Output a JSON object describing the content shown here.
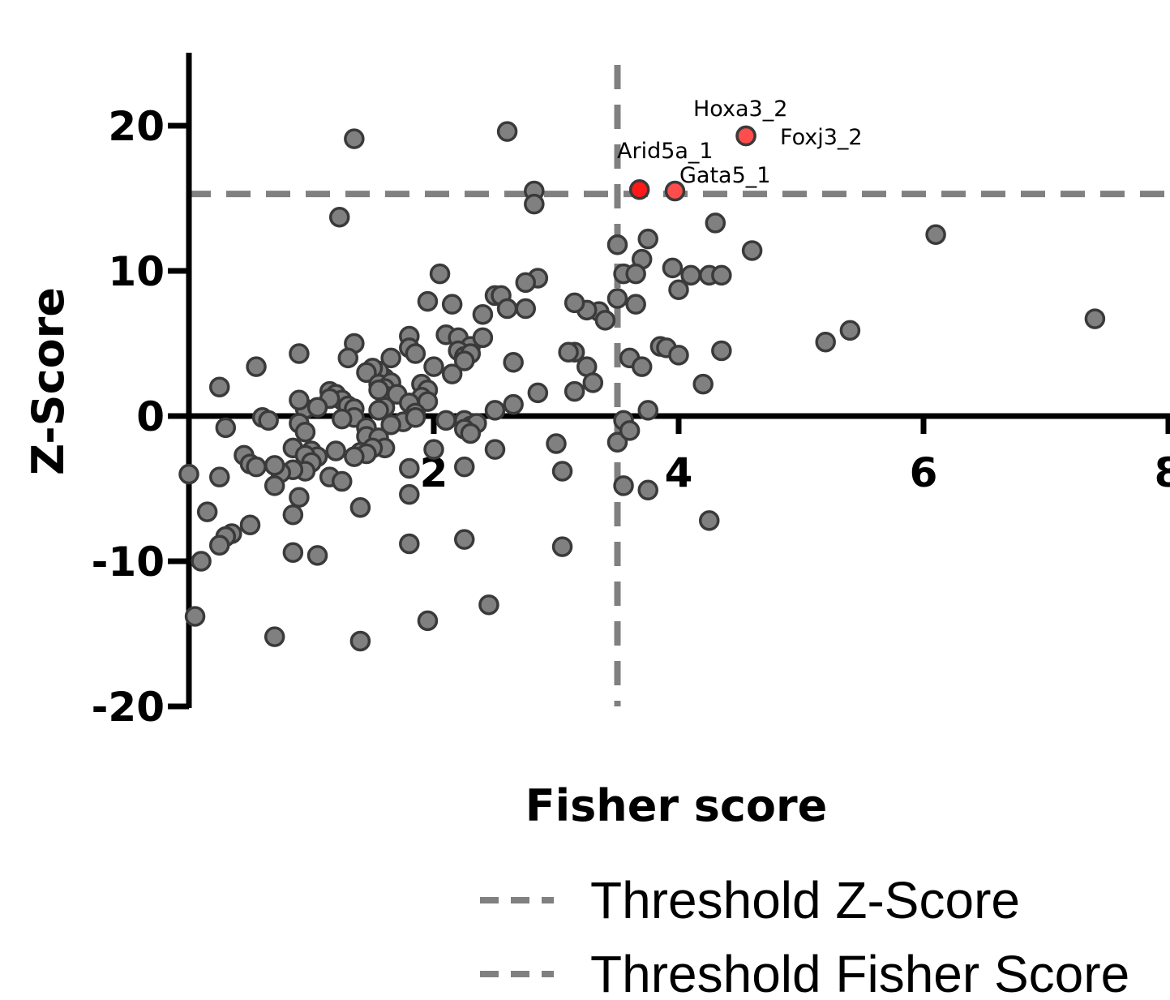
{
  "chart_data": {
    "type": "scatter",
    "xlabel": "Fisher score",
    "ylabel": "Z-Score",
    "xlim": [
      0,
      8
    ],
    "ylim": [
      -20,
      25
    ],
    "x_ticks": [
      {
        "value": 2,
        "label": "2"
      },
      {
        "value": 4,
        "label": "4"
      },
      {
        "value": 6,
        "label": "6"
      },
      {
        "value": 8,
        "label": "8"
      }
    ],
    "y_ticks": [
      {
        "value": 20,
        "label": "20"
      },
      {
        "value": 10,
        "label": "10"
      },
      {
        "value": 0,
        "label": "0"
      },
      {
        "value": -10,
        "label": "-10"
      },
      {
        "value": -20,
        "label": "-20"
      }
    ],
    "thresholds": {
      "z_score": 15.3,
      "fisher_score": 3.5
    },
    "colors": {
      "point_fill": "#808080",
      "point_stroke": "#3a3a3a",
      "highlight_fill": "#ff4d4d",
      "highlight_strong": "#ff1a1a",
      "threshold_line": "#808080",
      "axis": "#000000"
    },
    "highlighted": [
      {
        "name": "Hoxa3_2",
        "x": 4.55,
        "y": 19.3
      },
      {
        "name": "Foxj3_2",
        "x": 4.55,
        "y": 19.3
      },
      {
        "name": "Arid5a_1",
        "x": 3.68,
        "y": 15.6
      },
      {
        "name": "Gata5_1",
        "x": 3.97,
        "y": 15.5
      }
    ],
    "points": [
      [
        2.6,
        19.6
      ],
      [
        1.35,
        19.1
      ],
      [
        1.23,
        13.7
      ],
      [
        2.82,
        15.5
      ],
      [
        2.82,
        14.6
      ],
      [
        6.1,
        12.5
      ],
      [
        7.4,
        6.7
      ],
      [
        4.3,
        13.3
      ],
      [
        4.6,
        11.4
      ],
      [
        3.75,
        12.2
      ],
      [
        3.7,
        10.8
      ],
      [
        3.5,
        11.8
      ],
      [
        3.55,
        9.8
      ],
      [
        3.65,
        9.8
      ],
      [
        3.95,
        10.2
      ],
      [
        4.1,
        9.7
      ],
      [
        4.25,
        9.7
      ],
      [
        4.35,
        9.7
      ],
      [
        4.0,
        8.7
      ],
      [
        3.65,
        7.7
      ],
      [
        3.6,
        4.0
      ],
      [
        3.7,
        3.4
      ],
      [
        3.85,
        4.8
      ],
      [
        3.9,
        4.7
      ],
      [
        4.0,
        4.2
      ],
      [
        4.35,
        4.5
      ],
      [
        4.2,
        2.2
      ],
      [
        5.2,
        5.1
      ],
      [
        5.4,
        5.9
      ],
      [
        3.5,
        8.1
      ],
      [
        3.35,
        7.2
      ],
      [
        3.4,
        6.6
      ],
      [
        3.25,
        7.3
      ],
      [
        3.15,
        7.8
      ],
      [
        2.85,
        9.5
      ],
      [
        2.75,
        9.2
      ],
      [
        2.75,
        7.4
      ],
      [
        2.65,
        3.7
      ],
      [
        2.85,
        1.6
      ],
      [
        3.15,
        4.4
      ],
      [
        3.1,
        4.4
      ],
      [
        3.25,
        3.4
      ],
      [
        3.3,
        2.3
      ],
      [
        3.15,
        1.7
      ],
      [
        2.65,
        0.8
      ],
      [
        2.5,
        0.4
      ],
      [
        2.5,
        8.3
      ],
      [
        2.55,
        8.3
      ],
      [
        2.6,
        7.4
      ],
      [
        2.4,
        7.0
      ],
      [
        2.05,
        9.8
      ],
      [
        2.15,
        7.7
      ],
      [
        1.95,
        7.9
      ],
      [
        2.1,
        5.6
      ],
      [
        2.2,
        5.4
      ],
      [
        2.3,
        4.8
      ],
      [
        2.4,
        5.4
      ],
      [
        2.2,
        4.5
      ],
      [
        2.25,
        4.1
      ],
      [
        2.3,
        4.3
      ],
      [
        2.25,
        3.8
      ],
      [
        2.15,
        2.9
      ],
      [
        2.0,
        3.4
      ],
      [
        1.8,
        5.5
      ],
      [
        1.8,
        4.7
      ],
      [
        1.85,
        4.3
      ],
      [
        1.65,
        4.0
      ],
      [
        1.6,
        2.6
      ],
      [
        1.55,
        3.1
      ],
      [
        1.5,
        3.3
      ],
      [
        1.45,
        3.0
      ],
      [
        1.55,
        2.2
      ],
      [
        1.65,
        2.3
      ],
      [
        1.6,
        1.9
      ],
      [
        1.6,
        1.4
      ],
      [
        1.7,
        1.5
      ],
      [
        1.55,
        1.8
      ],
      [
        1.9,
        2.2
      ],
      [
        1.95,
        1.8
      ],
      [
        1.9,
        1.3
      ],
      [
        1.95,
        1.0
      ],
      [
        1.8,
        0.9
      ],
      [
        1.6,
        0.6
      ],
      [
        1.55,
        0.4
      ],
      [
        1.85,
        0.2
      ],
      [
        1.35,
        5.0
      ],
      [
        1.3,
        4.0
      ],
      [
        0.9,
        4.3
      ],
      [
        0.55,
        3.4
      ],
      [
        0.25,
        2.0
      ],
      [
        1.15,
        1.7
      ],
      [
        1.2,
        1.5
      ],
      [
        1.25,
        1.1
      ],
      [
        1.3,
        0.7
      ],
      [
        1.35,
        0.5
      ],
      [
        1.15,
        1.2
      ],
      [
        0.95,
        0.5
      ],
      [
        0.9,
        1.1
      ],
      [
        0.6,
        -0.1
      ],
      [
        0.65,
        -0.3
      ],
      [
        0.3,
        -0.8
      ],
      [
        1.05,
        0.6
      ],
      [
        1.35,
        -0.1
      ],
      [
        1.25,
        -0.2
      ],
      [
        1.45,
        -0.8
      ],
      [
        1.75,
        -0.4
      ],
      [
        1.65,
        -0.6
      ],
      [
        1.45,
        -1.4
      ],
      [
        1.55,
        -1.5
      ],
      [
        1.6,
        -2.2
      ],
      [
        1.5,
        -2.2
      ],
      [
        1.4,
        -2.5
      ],
      [
        1.45,
        -2.6
      ],
      [
        1.35,
        -2.8
      ],
      [
        1.2,
        -2.4
      ],
      [
        1.85,
        -0.1
      ],
      [
        2.1,
        -0.3
      ],
      [
        2.25,
        -0.3
      ],
      [
        2.3,
        -0.7
      ],
      [
        2.35,
        -0.5
      ],
      [
        2.25,
        -0.9
      ],
      [
        2.3,
        -1.2
      ],
      [
        0.9,
        -0.5
      ],
      [
        0.95,
        -1.1
      ],
      [
        0.85,
        -2.2
      ],
      [
        1.0,
        -2.4
      ],
      [
        1.05,
        -2.8
      ],
      [
        0.95,
        -2.7
      ],
      [
        1.0,
        -3.2
      ],
      [
        0.95,
        -3.8
      ],
      [
        0.85,
        -3.7
      ],
      [
        0.75,
        -3.9
      ],
      [
        0.7,
        -3.4
      ],
      [
        0.45,
        -2.7
      ],
      [
        0.5,
        -3.3
      ],
      [
        0.55,
        -3.5
      ],
      [
        0.25,
        -4.2
      ],
      [
        0.0,
        -4.0
      ],
      [
        0.7,
        -4.8
      ],
      [
        1.15,
        -4.2
      ],
      [
        1.25,
        -4.5
      ],
      [
        1.8,
        -3.6
      ],
      [
        1.8,
        -5.4
      ],
      [
        2.0,
        -2.3
      ],
      [
        2.5,
        -2.3
      ],
      [
        2.25,
        -3.5
      ],
      [
        3.0,
        -1.9
      ],
      [
        3.05,
        -3.8
      ],
      [
        3.5,
        -1.8
      ],
      [
        3.55,
        -0.3
      ],
      [
        3.6,
        -1.0
      ],
      [
        3.75,
        0.4
      ],
      [
        3.55,
        -4.8
      ],
      [
        3.75,
        -5.1
      ],
      [
        1.4,
        -6.3
      ],
      [
        0.9,
        -5.6
      ],
      [
        0.85,
        -6.8
      ],
      [
        0.15,
        -6.6
      ],
      [
        0.5,
        -7.5
      ],
      [
        0.35,
        -8.1
      ],
      [
        0.3,
        -8.3
      ],
      [
        0.25,
        -8.9
      ],
      [
        0.1,
        -10.0
      ],
      [
        0.85,
        -9.4
      ],
      [
        1.05,
        -9.6
      ],
      [
        1.8,
        -8.8
      ],
      [
        2.25,
        -8.5
      ],
      [
        3.05,
        -9.0
      ],
      [
        4.25,
        -7.2
      ],
      [
        0.05,
        -13.8
      ],
      [
        0.7,
        -15.2
      ],
      [
        1.4,
        -15.5
      ],
      [
        1.95,
        -14.1
      ],
      [
        2.45,
        -13.0
      ]
    ],
    "annotations": [
      {
        "text": "Hoxa3_2",
        "x": 4.55,
        "y": 19.3
      },
      {
        "text": "Foxj3_2",
        "x": 4.55,
        "y": 19.3
      },
      {
        "text": "Arid5a_1",
        "x": 3.68,
        "y": 15.6
      },
      {
        "text": "Gata5_1",
        "x": 3.97,
        "y": 15.5
      }
    ],
    "legend": {
      "position": "bottom-right",
      "entries": [
        "Threshold  Z-Score",
        "Threshold  Fisher Score"
      ]
    }
  }
}
